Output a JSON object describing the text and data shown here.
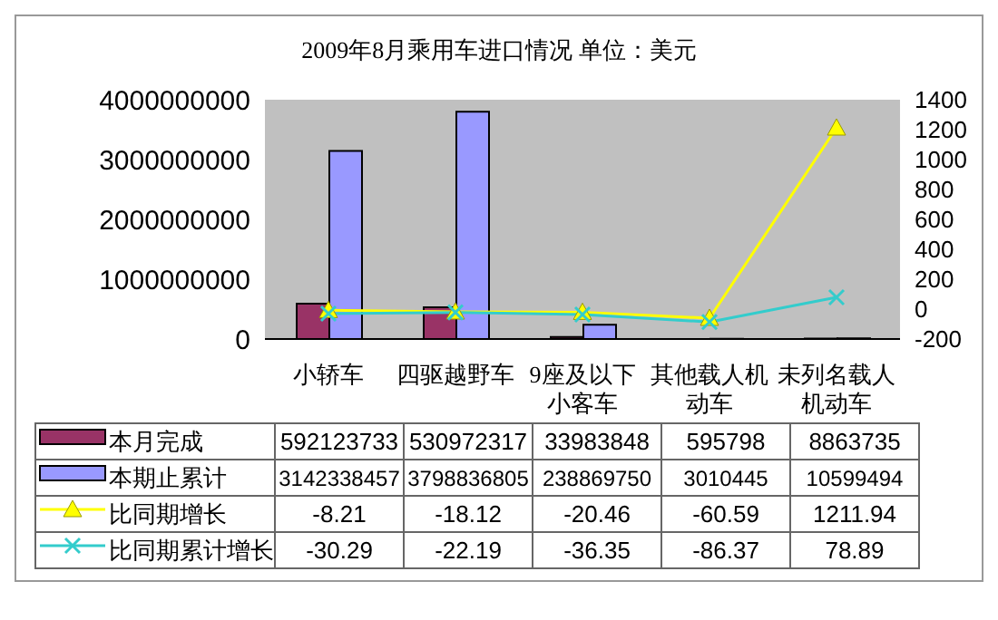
{
  "chart_data": {
    "type": "bar",
    "title": "2009年8月乘用车进口情况 单位：美元",
    "categories": [
      "小轿车",
      "四驱越野车",
      "9座及以下小客车",
      "其他载人机动车",
      "未列名载人机动车"
    ],
    "series": [
      {
        "name": "本月完成",
        "color": "#993366",
        "values": [
          592123733,
          530972317,
          33983848,
          595798,
          8863735
        ]
      },
      {
        "name": "本期止累计",
        "color": "#9999ff",
        "values": [
          3142338457,
          3798836805,
          238869750,
          3010445,
          10599494
        ]
      },
      {
        "name": "比同期增长",
        "type": "line",
        "axis": "y2",
        "color": "#ffff00",
        "marker": "triangle",
        "values": [
          -8.21,
          -18.12,
          -20.46,
          -60.59,
          1211.94
        ]
      },
      {
        "name": "比同期累计增长",
        "type": "line",
        "axis": "y2",
        "color": "#33cccc",
        "marker": "cross",
        "values": [
          -30.29,
          -22.19,
          -36.35,
          -86.37,
          78.89
        ]
      }
    ],
    "ylim": [
      0,
      4000000000
    ],
    "yticks": [
      0,
      1000000000,
      2000000000,
      3000000000,
      4000000000
    ],
    "y2lim": [
      -200,
      1400
    ],
    "y2ticks": [
      -200,
      0,
      200,
      400,
      600,
      800,
      1000,
      1200,
      1400
    ],
    "data_labels": true,
    "legend": "bottom"
  }
}
